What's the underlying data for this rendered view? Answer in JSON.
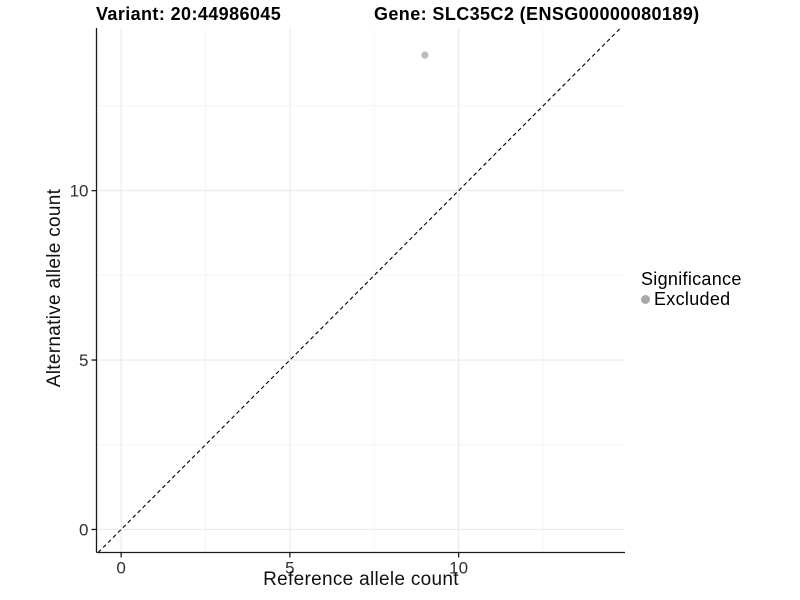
{
  "figure": {
    "title_variant": "Variant: 20:44986045",
    "title_gene": "Gene: SLC35C2 (ENSG00000080189)"
  },
  "chart_data": {
    "type": "scatter",
    "title": "Variant: 20:44986045  Gene: SLC35C2 (ENSG00000080189)",
    "xlabel": "Reference allele count",
    "ylabel": "Alternative allele count",
    "xlim": [
      -0.73,
      14.93
    ],
    "ylim": [
      -0.68,
      14.8
    ],
    "x_major_ticks": [
      0,
      5,
      10
    ],
    "y_major_ticks": [
      0,
      5,
      10
    ],
    "x_minor_gridlines": [
      2.5,
      7.5,
      12.5
    ],
    "y_minor_gridlines": [
      2.5,
      7.5,
      12.5
    ],
    "grid": true,
    "identity_line": {
      "slope": 1,
      "intercept": 0,
      "style": "dashed",
      "color": "#000000"
    },
    "series": [
      {
        "name": "Excluded",
        "color": "#bcbcbc",
        "points": [
          {
            "x": 9,
            "y": 14
          }
        ]
      }
    ],
    "legend": {
      "title": "Significance",
      "position": "right",
      "entries": [
        {
          "label": "Excluded",
          "color": "#a8a8a8"
        }
      ]
    },
    "colors": {
      "axis_line": "#1a1a1a",
      "tick_label": "#303030",
      "grid_major": "#ebebeb",
      "grid_minor": "#f5f5f5",
      "background": "#ffffff"
    }
  }
}
